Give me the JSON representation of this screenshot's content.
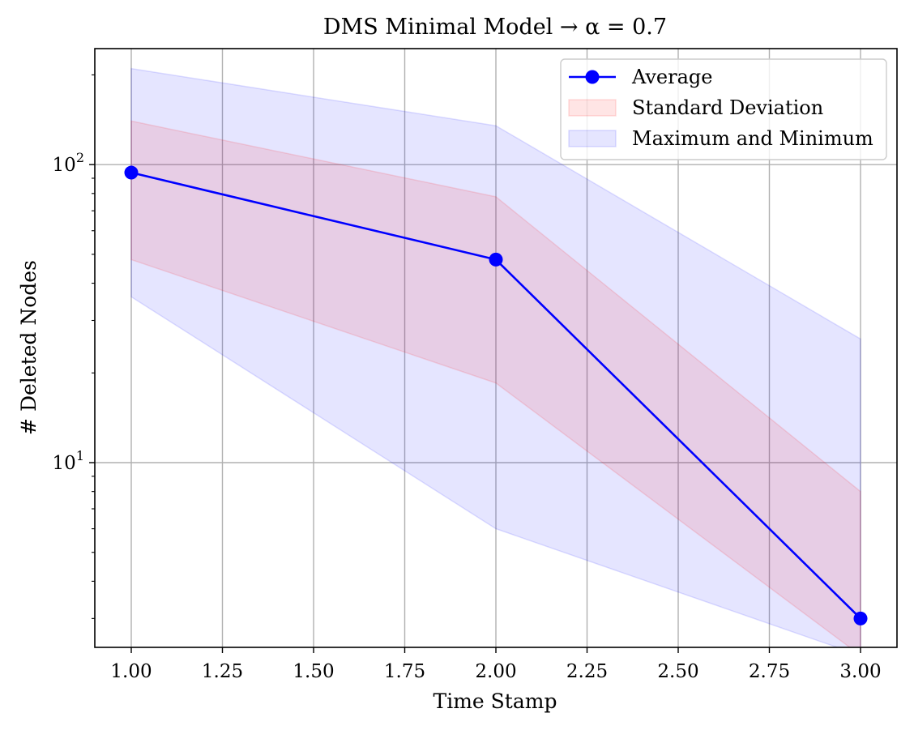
{
  "chart_data": {
    "type": "line",
    "title": "DMS Minimal Model → α = 0.7",
    "xlabel": "Time Stamp",
    "ylabel": "# Deleted Nodes",
    "xlim": [
      0.9,
      3.1
    ],
    "ylim": [
      2.4,
      245
    ],
    "yscale": "log",
    "grid": true,
    "legend_position": "top-right",
    "x_ticks": [
      "1.00",
      "1.25",
      "1.50",
      "1.75",
      "2.00",
      "2.25",
      "2.50",
      "2.75",
      "3.00"
    ],
    "x_tick_values": [
      1.0,
      1.25,
      1.5,
      1.75,
      2.0,
      2.25,
      2.5,
      2.75,
      3.0
    ],
    "y_ticks": [
      {
        "value": 10,
        "base": "10",
        "exp": "1"
      },
      {
        "value": 100,
        "base": "10",
        "exp": "2"
      }
    ],
    "x": [
      1,
      2,
      3
    ],
    "series": [
      {
        "name": "Average",
        "kind": "line",
        "color": "#0000ff",
        "values": [
          94,
          48,
          3
        ]
      },
      {
        "name": "Standard Deviation",
        "kind": "band",
        "color": "#ff0000",
        "opacity": 0.1,
        "upper": [
          140,
          78,
          8
        ],
        "lower": [
          48,
          18.5,
          0
        ]
      },
      {
        "name": "Maximum and Minimum",
        "kind": "band",
        "color": "#0000ff",
        "opacity": 0.1,
        "upper": [
          210,
          135,
          26
        ],
        "lower": [
          36,
          6,
          0
        ]
      }
    ],
    "legend": [
      "Average",
      "Standard Deviation",
      "Maximum and Minimum"
    ]
  }
}
